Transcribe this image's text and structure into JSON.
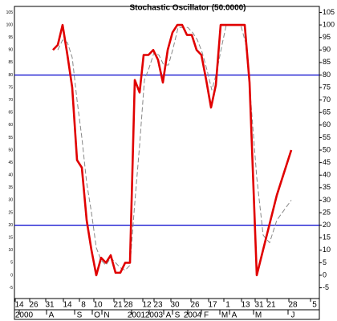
{
  "chart_data": {
    "type": "line",
    "title": "Stochastic Oscillator (50.0000)",
    "xlim": [
      0,
      380
    ],
    "ylim": [
      -9.3,
      107.4
    ],
    "yticks": [
      -5,
      0,
      5,
      10,
      15,
      20,
      25,
      30,
      35,
      40,
      45,
      50,
      55,
      60,
      65,
      70,
      75,
      80,
      85,
      90,
      95,
      100,
      105
    ],
    "hlines": [
      80,
      20
    ],
    "hline_color": "#0000cc",
    "series": [
      {
        "color": "#e00000",
        "style": "solid",
        "x": [
          48,
          54,
          60,
          66,
          72,
          78,
          84,
          90,
          96,
          102,
          108,
          114,
          120,
          126,
          132,
          138,
          144,
          150,
          156,
          161,
          167,
          173,
          179,
          185,
          191,
          197,
          203,
          209,
          215,
          221,
          227,
          233,
          239,
          245,
          251,
          257,
          263,
          269,
          275,
          281,
          287,
          293,
          302,
          309,
          327,
          345
        ],
        "values": [
          90,
          92,
          100,
          88,
          75,
          46,
          43,
          22,
          10,
          0,
          7,
          5,
          8,
          1,
          1,
          5,
          5,
          78,
          73,
          88,
          88,
          90,
          86,
          77,
          90,
          97,
          100,
          100,
          96,
          96,
          90,
          88,
          78,
          67,
          76,
          100,
          100,
          100,
          100,
          100,
          100,
          77,
          0,
          9,
          32,
          50
        ]
      },
      {
        "color": "#888888",
        "style": "dashed",
        "x": [
          54,
          60,
          66,
          72,
          78,
          84,
          90,
          96,
          102,
          108,
          114,
          120,
          126,
          132,
          138,
          144,
          150,
          156,
          162,
          168,
          174,
          180,
          186,
          192,
          198,
          204,
          210,
          216,
          222,
          228,
          234,
          240,
          246,
          252,
          258,
          264,
          282,
          288,
          294,
          302,
          310,
          318,
          327,
          345
        ],
        "values": [
          90,
          94,
          93,
          87,
          70,
          55,
          37,
          25,
          11,
          6,
          4,
          7,
          5,
          3,
          2,
          4,
          29,
          52,
          78,
          83,
          89,
          88,
          84,
          84,
          91,
          99,
          99,
          99,
          97,
          94,
          89,
          82,
          74,
          81,
          91,
          100,
          100,
          93,
          72,
          39,
          16,
          13,
          22,
          30
        ]
      }
    ],
    "xticks": [
      {
        "value": 6,
        "label": "14"
      },
      {
        "value": 24,
        "label": "26"
      },
      {
        "value": 44,
        "label": "31"
      },
      {
        "value": 66,
        "label": "14"
      },
      {
        "value": 86,
        "label": "8"
      },
      {
        "value": 104,
        "label": "10"
      },
      {
        "value": 129,
        "label": "21"
      },
      {
        "value": 142,
        "label": "28"
      },
      {
        "value": 165,
        "label": "12"
      },
      {
        "value": 179,
        "label": "23"
      },
      {
        "value": 200,
        "label": "30"
      },
      {
        "value": 225,
        "label": "26"
      },
      {
        "value": 247,
        "label": "17"
      },
      {
        "value": 266,
        "label": "1"
      },
      {
        "value": 288,
        "label": "13"
      },
      {
        "value": 305,
        "label": "31"
      },
      {
        "value": 320,
        "label": "21"
      },
      {
        "value": 347,
        "label": "28"
      },
      {
        "value": 374,
        "label": "5"
      }
    ],
    "period_ticks": [
      {
        "value": 12,
        "label": "2000"
      },
      {
        "value": 46,
        "label": "A"
      },
      {
        "value": 81,
        "label": "S"
      },
      {
        "value": 103,
        "label": "O"
      },
      {
        "value": 115,
        "label": "N"
      },
      {
        "value": 152,
        "label": "2001"
      },
      {
        "value": 174,
        "label": "2003"
      },
      {
        "value": 192,
        "label": "A"
      },
      {
        "value": 203,
        "label": "S"
      },
      {
        "value": 222,
        "label": "2004"
      },
      {
        "value": 239,
        "label": "F"
      },
      {
        "value": 262,
        "label": "M"
      },
      {
        "value": 274,
        "label": "A"
      },
      {
        "value": 304,
        "label": "M"
      },
      {
        "value": 347,
        "label": "J"
      }
    ]
  }
}
